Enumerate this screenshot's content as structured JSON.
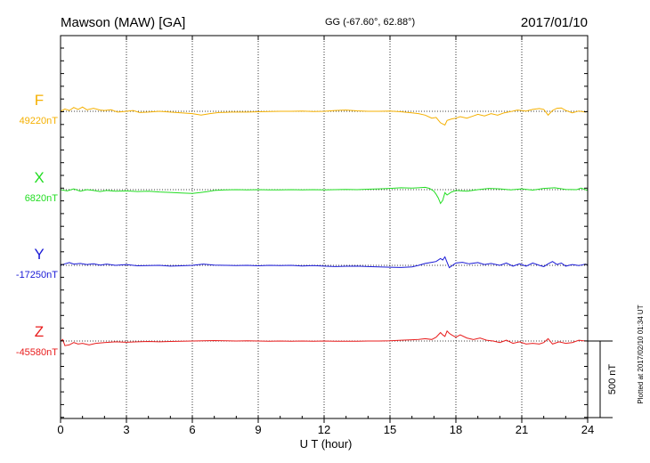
{
  "chart_data": {
    "type": "line",
    "title": "Mawson (MAW)  [GA]",
    "coord": "GG (-67.60°,  62.88°)",
    "date": "2017/01/10",
    "xlabel": "U T (hour)",
    "xlim": [
      0,
      24
    ],
    "xticks": [
      "0",
      "3",
      "6",
      "9",
      "12",
      "15",
      "18",
      "21",
      "24"
    ],
    "grid": true,
    "scale_bar": "500 nT",
    "plot_note": "Plotted at 2017/02/10 01:34 UT",
    "series": [
      {
        "name": "F",
        "baseline": "49220nT",
        "color": "#f5b000",
        "points": [
          [
            0,
            0
          ],
          [
            0.2,
            15
          ],
          [
            0.4,
            5
          ],
          [
            0.6,
            25
          ],
          [
            0.8,
            12
          ],
          [
            1.0,
            28
          ],
          [
            1.2,
            10
          ],
          [
            1.5,
            20
          ],
          [
            1.8,
            8
          ],
          [
            2.0,
            5
          ],
          [
            2.3,
            10
          ],
          [
            2.6,
            -5
          ],
          [
            3.0,
            0
          ],
          [
            3.3,
            5
          ],
          [
            3.6,
            -8
          ],
          [
            4.0,
            -5
          ],
          [
            4.5,
            0
          ],
          [
            5.0,
            -5
          ],
          [
            5.5,
            -10
          ],
          [
            6.0,
            -15
          ],
          [
            6.4,
            -25
          ],
          [
            6.8,
            -15
          ],
          [
            7.2,
            -8
          ],
          [
            7.8,
            -5
          ],
          [
            8.5,
            -5
          ],
          [
            9.0,
            -3
          ],
          [
            9.5,
            -2
          ],
          [
            10,
            0
          ],
          [
            10.5,
            0
          ],
          [
            11,
            2
          ],
          [
            11.5,
            -2
          ],
          [
            12,
            0
          ],
          [
            12.5,
            5
          ],
          [
            13,
            8
          ],
          [
            13.5,
            3
          ],
          [
            14,
            0
          ],
          [
            14.5,
            0
          ],
          [
            15,
            2
          ],
          [
            15.5,
            -3
          ],
          [
            16,
            -10
          ],
          [
            16.3,
            -15
          ],
          [
            16.6,
            -25
          ],
          [
            16.9,
            -45
          ],
          [
            17.1,
            -40
          ],
          [
            17.3,
            -75
          ],
          [
            17.5,
            -90
          ],
          [
            17.6,
            -60
          ],
          [
            17.8,
            -50
          ],
          [
            18.0,
            -45
          ],
          [
            18.2,
            -35
          ],
          [
            18.5,
            -45
          ],
          [
            18.8,
            -30
          ],
          [
            19.0,
            -20
          ],
          [
            19.3,
            -30
          ],
          [
            19.6,
            -15
          ],
          [
            19.9,
            -25
          ],
          [
            20.2,
            -10
          ],
          [
            20.5,
            -2
          ],
          [
            20.8,
            8
          ],
          [
            21.2,
            2
          ],
          [
            21.5,
            12
          ],
          [
            21.8,
            18
          ],
          [
            22.0,
            12
          ],
          [
            22.2,
            -25
          ],
          [
            22.4,
            5
          ],
          [
            22.6,
            20
          ],
          [
            22.8,
            22
          ],
          [
            23.0,
            5
          ],
          [
            23.3,
            -10
          ],
          [
            23.6,
            2
          ],
          [
            23.9,
            -5
          ],
          [
            24,
            0
          ]
        ]
      },
      {
        "name": "X",
        "baseline": "6820nT",
        "color": "#22dd22",
        "points": [
          [
            0,
            0
          ],
          [
            0.3,
            -8
          ],
          [
            0.6,
            5
          ],
          [
            0.9,
            -10
          ],
          [
            1.2,
            0
          ],
          [
            1.5,
            -5
          ],
          [
            1.8,
            -12
          ],
          [
            2.1,
            -5
          ],
          [
            2.5,
            -10
          ],
          [
            3.0,
            -8
          ],
          [
            3.5,
            -12
          ],
          [
            4.0,
            -10
          ],
          [
            4.5,
            -15
          ],
          [
            5.0,
            -18
          ],
          [
            5.5,
            -22
          ],
          [
            6.0,
            -25
          ],
          [
            6.4,
            -18
          ],
          [
            6.7,
            -12
          ],
          [
            7.0,
            -5
          ],
          [
            7.5,
            -2
          ],
          [
            8.0,
            0
          ],
          [
            8.5,
            -2
          ],
          [
            9.0,
            0
          ],
          [
            9.5,
            -2
          ],
          [
            10,
            -1
          ],
          [
            10.5,
            0
          ],
          [
            11,
            -2
          ],
          [
            11.5,
            0
          ],
          [
            12,
            -1
          ],
          [
            12.5,
            0
          ],
          [
            13,
            2
          ],
          [
            13.5,
            0
          ],
          [
            14,
            3
          ],
          [
            14.5,
            5
          ],
          [
            15,
            8
          ],
          [
            15.5,
            12
          ],
          [
            16,
            10
          ],
          [
            16.3,
            12
          ],
          [
            16.6,
            15
          ],
          [
            16.8,
            8
          ],
          [
            17.0,
            -10
          ],
          [
            17.1,
            -30
          ],
          [
            17.2,
            -55
          ],
          [
            17.3,
            -90
          ],
          [
            17.4,
            -70
          ],
          [
            17.5,
            -20
          ],
          [
            17.6,
            -35
          ],
          [
            17.8,
            -15
          ],
          [
            18.0,
            -5
          ],
          [
            18.5,
            -10
          ],
          [
            19.0,
            0
          ],
          [
            19.5,
            8
          ],
          [
            20.0,
            5
          ],
          [
            20.5,
            -2
          ],
          [
            21.0,
            5
          ],
          [
            21.5,
            -3
          ],
          [
            22.0,
            8
          ],
          [
            22.5,
            12
          ],
          [
            23.0,
            2
          ],
          [
            23.5,
            0
          ],
          [
            23.7,
            10
          ],
          [
            24,
            -5
          ]
        ]
      },
      {
        "name": "Y",
        "baseline": "-17250nT",
        "color": "#1a1ad6",
        "points": [
          [
            0,
            0
          ],
          [
            0.2,
            10
          ],
          [
            0.4,
            18
          ],
          [
            0.6,
            8
          ],
          [
            0.9,
            12
          ],
          [
            1.2,
            5
          ],
          [
            1.5,
            10
          ],
          [
            1.8,
            2
          ],
          [
            2.1,
            8
          ],
          [
            2.5,
            0
          ],
          [
            3.0,
            5
          ],
          [
            3.5,
            -3
          ],
          [
            4.0,
            -2
          ],
          [
            4.5,
            0
          ],
          [
            5.0,
            -5
          ],
          [
            5.5,
            -3
          ],
          [
            6.0,
            0
          ],
          [
            6.5,
            8
          ],
          [
            7.0,
            2
          ],
          [
            7.5,
            0
          ],
          [
            8,
            -2
          ],
          [
            8.5,
            0
          ],
          [
            9,
            -3
          ],
          [
            9.5,
            0
          ],
          [
            10,
            -2
          ],
          [
            10.5,
            0
          ],
          [
            11,
            -4
          ],
          [
            11.5,
            -2
          ],
          [
            12,
            -5
          ],
          [
            12.5,
            -8
          ],
          [
            13,
            -6
          ],
          [
            13.5,
            -5
          ],
          [
            14,
            -8
          ],
          [
            14.5,
            -10
          ],
          [
            15,
            -12
          ],
          [
            15.5,
            -14
          ],
          [
            16,
            -10
          ],
          [
            16.3,
            0
          ],
          [
            16.6,
            12
          ],
          [
            16.9,
            20
          ],
          [
            17.1,
            25
          ],
          [
            17.3,
            45
          ],
          [
            17.4,
            35
          ],
          [
            17.5,
            55
          ],
          [
            17.6,
            20
          ],
          [
            17.7,
            -15
          ],
          [
            17.8,
            -5
          ],
          [
            18.0,
            15
          ],
          [
            18.3,
            20
          ],
          [
            18.6,
            10
          ],
          [
            19.0,
            18
          ],
          [
            19.3,
            5
          ],
          [
            19.6,
            12
          ],
          [
            20.0,
            0
          ],
          [
            20.3,
            15
          ],
          [
            20.6,
            -5
          ],
          [
            20.9,
            10
          ],
          [
            21.2,
            -5
          ],
          [
            21.5,
            15
          ],
          [
            21.8,
            0
          ],
          [
            22.0,
            -8
          ],
          [
            22.2,
            10
          ],
          [
            22.4,
            25
          ],
          [
            22.6,
            5
          ],
          [
            22.8,
            15
          ],
          [
            23.0,
            -5
          ],
          [
            23.3,
            5
          ],
          [
            23.6,
            -2
          ],
          [
            23.9,
            8
          ],
          [
            24,
            0
          ]
        ]
      },
      {
        "name": "Z",
        "baseline": "-45580nT",
        "color": "#e81c1c",
        "points": [
          [
            0,
            0
          ],
          [
            0.1,
            10
          ],
          [
            0.2,
            -30
          ],
          [
            0.4,
            -25
          ],
          [
            0.6,
            -10
          ],
          [
            0.8,
            -20
          ],
          [
            1.0,
            -15
          ],
          [
            1.3,
            -25
          ],
          [
            1.6,
            -15
          ],
          [
            2.0,
            -10
          ],
          [
            2.5,
            -5
          ],
          [
            3.0,
            -8
          ],
          [
            3.5,
            -5
          ],
          [
            4.0,
            -3
          ],
          [
            4.5,
            -5
          ],
          [
            5.0,
            -3
          ],
          [
            5.5,
            -2
          ],
          [
            6.0,
            0
          ],
          [
            6.5,
            2
          ],
          [
            7.0,
            3
          ],
          [
            7.5,
            2
          ],
          [
            8,
            0
          ],
          [
            8.5,
            1
          ],
          [
            9,
            0
          ],
          [
            9.5,
            -1
          ],
          [
            10,
            0
          ],
          [
            10.5,
            -1
          ],
          [
            11,
            0
          ],
          [
            11.5,
            -1
          ],
          [
            12,
            0
          ],
          [
            12.5,
            -1
          ],
          [
            13,
            -2
          ],
          [
            13.5,
            -1
          ],
          [
            14,
            0
          ],
          [
            14.5,
            0
          ],
          [
            15,
            2
          ],
          [
            15.5,
            5
          ],
          [
            16,
            8
          ],
          [
            16.3,
            10
          ],
          [
            16.6,
            15
          ],
          [
            16.9,
            10
          ],
          [
            17.1,
            25
          ],
          [
            17.3,
            55
          ],
          [
            17.4,
            40
          ],
          [
            17.5,
            30
          ],
          [
            17.6,
            65
          ],
          [
            17.7,
            50
          ],
          [
            17.8,
            40
          ],
          [
            18.0,
            25
          ],
          [
            18.2,
            40
          ],
          [
            18.5,
            20
          ],
          [
            18.8,
            10
          ],
          [
            19.1,
            20
          ],
          [
            19.4,
            5
          ],
          [
            19.7,
            0
          ],
          [
            20.0,
            -10
          ],
          [
            20.3,
            5
          ],
          [
            20.6,
            -15
          ],
          [
            20.9,
            -5
          ],
          [
            21.2,
            -20
          ],
          [
            21.5,
            -15
          ],
          [
            21.8,
            -20
          ],
          [
            22.0,
            -10
          ],
          [
            22.2,
            15
          ],
          [
            22.4,
            -20
          ],
          [
            22.7,
            -5
          ],
          [
            23.0,
            -15
          ],
          [
            23.3,
            -10
          ],
          [
            23.6,
            5
          ],
          [
            23.9,
            0
          ],
          [
            24,
            0
          ]
        ]
      }
    ]
  }
}
